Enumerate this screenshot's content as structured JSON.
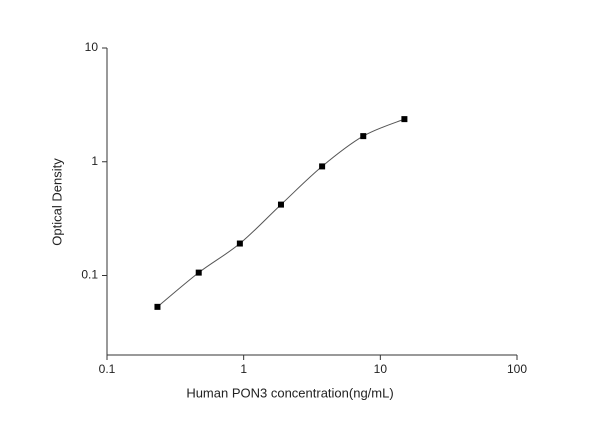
{
  "chart_data": {
    "type": "scatter",
    "x_label": "Human PON3 concentration(ng/mL)",
    "y_label": "Optical Density",
    "x": [
      0.234,
      0.469,
      0.938,
      1.875,
      3.75,
      7.5,
      15
    ],
    "values": [
      0.053,
      0.106,
      0.191,
      0.42,
      0.91,
      1.68,
      2.37
    ],
    "color": "#000000",
    "xscale": "log",
    "yscale": "log",
    "xlim": [
      0.1,
      100
    ],
    "ylim": [
      0.02,
      10
    ],
    "xticks": [
      0.1,
      1,
      10,
      100
    ],
    "yticks": [
      0.1,
      1,
      10
    ],
    "grid": false
  }
}
